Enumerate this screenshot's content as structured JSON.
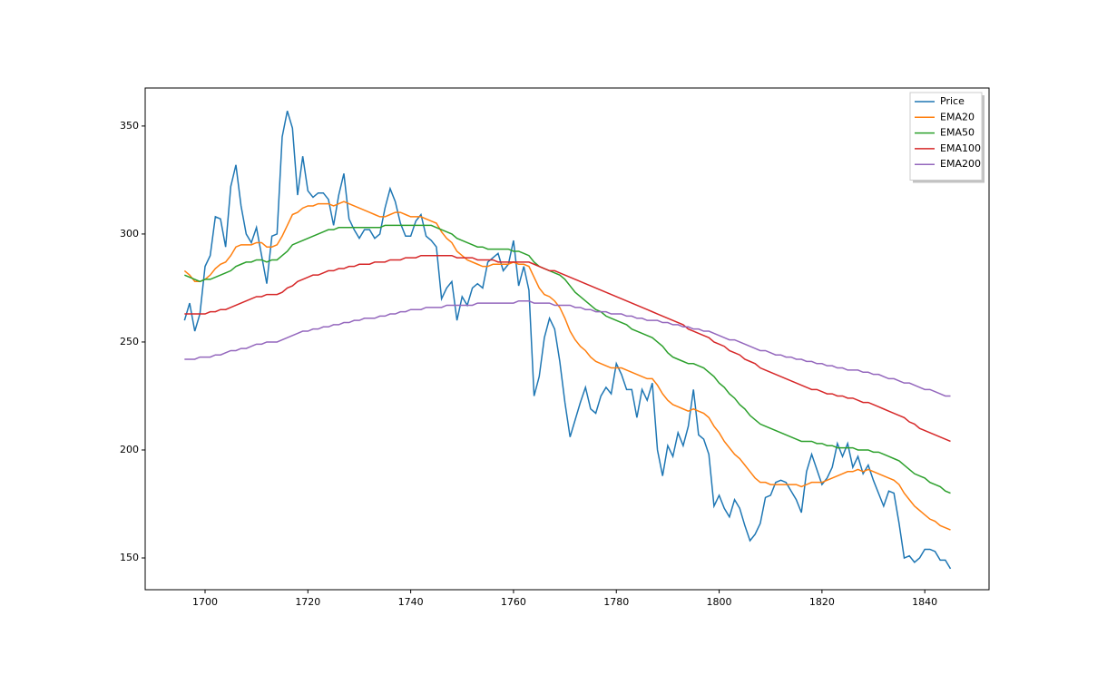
{
  "chart_data": {
    "type": "line",
    "x": [
      1696,
      1697,
      1698,
      1699,
      1700,
      1701,
      1702,
      1703,
      1704,
      1705,
      1706,
      1707,
      1708,
      1709,
      1710,
      1711,
      1712,
      1713,
      1714,
      1715,
      1716,
      1717,
      1718,
      1719,
      1720,
      1721,
      1722,
      1723,
      1724,
      1725,
      1726,
      1727,
      1728,
      1729,
      1730,
      1731,
      1732,
      1733,
      1734,
      1735,
      1736,
      1737,
      1738,
      1739,
      1740,
      1741,
      1742,
      1743,
      1744,
      1745,
      1746,
      1747,
      1748,
      1749,
      1750,
      1751,
      1752,
      1753,
      1754,
      1755,
      1756,
      1757,
      1758,
      1759,
      1760,
      1761,
      1762,
      1763,
      1764,
      1765,
      1766,
      1767,
      1768,
      1769,
      1770,
      1771,
      1772,
      1773,
      1774,
      1775,
      1776,
      1777,
      1778,
      1779,
      1780,
      1781,
      1782,
      1783,
      1784,
      1785,
      1786,
      1787,
      1788,
      1789,
      1790,
      1791,
      1792,
      1793,
      1794,
      1795,
      1796,
      1797,
      1798,
      1799,
      1800,
      1801,
      1802,
      1803,
      1804,
      1805,
      1806,
      1807,
      1808,
      1809,
      1810,
      1811,
      1812,
      1813,
      1814,
      1815,
      1816,
      1817,
      1818,
      1819,
      1820,
      1821,
      1822,
      1823,
      1824,
      1825,
      1826,
      1827,
      1828,
      1829,
      1830,
      1831,
      1832,
      1833,
      1834,
      1835,
      1836,
      1837,
      1838,
      1839,
      1840,
      1841,
      1842,
      1843,
      1844,
      1845
    ],
    "series": [
      {
        "name": "Price",
        "color": "#1f77b4",
        "values": [
          260,
          268,
          255,
          263,
          285,
          290,
          308,
          307,
          294,
          322,
          332,
          313,
          300,
          296,
          303,
          290,
          277,
          299,
          300,
          345,
          357,
          349,
          318,
          336,
          320,
          317,
          319,
          319,
          316,
          304,
          318,
          328,
          307,
          302,
          298,
          302,
          302,
          298,
          300,
          312,
          321,
          315,
          305,
          299,
          299,
          306,
          309,
          299,
          297,
          294,
          270,
          275,
          278,
          260,
          271,
          267,
          275,
          277,
          275,
          287,
          289,
          291,
          283,
          286,
          297,
          276,
          285,
          274,
          225,
          234,
          252,
          261,
          256,
          241,
          222,
          206,
          214,
          222,
          229,
          219,
          217,
          225,
          229,
          226,
          240,
          235,
          228,
          228,
          215,
          228,
          223,
          231,
          200,
          188,
          202,
          197,
          208,
          202,
          211,
          228,
          207,
          205,
          198,
          174,
          179,
          173,
          169,
          177,
          173,
          165,
          158,
          161,
          166,
          178,
          179,
          185,
          186,
          185,
          181,
          177,
          171,
          190,
          198,
          191,
          184,
          187,
          192,
          203,
          197,
          203,
          192,
          197,
          189,
          193,
          186,
          180,
          174,
          181,
          180,
          166,
          150,
          151,
          148,
          150,
          154,
          154,
          153,
          149,
          149,
          145
        ]
      },
      {
        "name": "EMA20",
        "color": "#ff7f0e",
        "values": [
          283,
          281,
          278,
          278,
          279,
          281,
          284,
          286,
          287,
          290,
          294,
          295,
          295,
          295,
          296,
          296,
          294,
          294,
          295,
          299,
          304,
          309,
          310,
          312,
          313,
          313,
          314,
          314,
          314,
          313,
          314,
          315,
          314,
          313,
          312,
          311,
          310,
          309,
          308,
          308,
          309,
          310,
          310,
          309,
          308,
          308,
          308,
          307,
          306,
          305,
          301,
          298,
          296,
          292,
          290,
          288,
          287,
          286,
          285,
          285,
          286,
          286,
          286,
          286,
          287,
          286,
          286,
          285,
          280,
          275,
          272,
          271,
          269,
          266,
          261,
          255,
          251,
          248,
          246,
          243,
          241,
          240,
          239,
          238,
          238,
          238,
          237,
          236,
          235,
          234,
          233,
          233,
          230,
          226,
          223,
          221,
          220,
          219,
          218,
          219,
          218,
          217,
          215,
          211,
          208,
          204,
          201,
          198,
          196,
          193,
          190,
          187,
          185,
          185,
          184,
          184,
          184,
          184,
          184,
          184,
          183,
          184,
          185,
          185,
          185,
          186,
          187,
          188,
          189,
          190,
          190,
          191,
          190,
          191,
          190,
          189,
          188,
          187,
          186,
          184,
          180,
          177,
          174,
          172,
          170,
          168,
          167,
          165,
          164,
          163
        ]
      },
      {
        "name": "EMA50",
        "color": "#2ca02c",
        "values": [
          281,
          280,
          279,
          278,
          279,
          279,
          280,
          281,
          282,
          283,
          285,
          286,
          287,
          287,
          288,
          288,
          287,
          288,
          288,
          290,
          292,
          295,
          296,
          297,
          298,
          299,
          300,
          301,
          302,
          302,
          303,
          303,
          303,
          303,
          303,
          303,
          303,
          303,
          303,
          304,
          304,
          304,
          304,
          304,
          304,
          304,
          304,
          304,
          304,
          303,
          302,
          301,
          300,
          298,
          297,
          296,
          295,
          294,
          294,
          293,
          293,
          293,
          293,
          293,
          292,
          292,
          291,
          290,
          287,
          285,
          284,
          283,
          282,
          281,
          279,
          276,
          273,
          271,
          269,
          267,
          265,
          264,
          262,
          261,
          260,
          259,
          258,
          256,
          255,
          254,
          253,
          252,
          250,
          248,
          245,
          243,
          242,
          241,
          240,
          240,
          239,
          238,
          236,
          234,
          231,
          229,
          226,
          224,
          221,
          219,
          216,
          214,
          212,
          211,
          210,
          209,
          208,
          207,
          206,
          205,
          204,
          204,
          204,
          203,
          203,
          202,
          202,
          201,
          201,
          201,
          201,
          200,
          200,
          200,
          199,
          199,
          198,
          197,
          196,
          195,
          193,
          191,
          189,
          188,
          187,
          185,
          184,
          183,
          181,
          180
        ]
      },
      {
        "name": "EMA100",
        "color": "#d62728",
        "values": [
          263,
          263,
          263,
          263,
          263,
          264,
          264,
          265,
          265,
          266,
          267,
          268,
          269,
          270,
          271,
          271,
          272,
          272,
          272,
          273,
          275,
          276,
          278,
          279,
          280,
          281,
          281,
          282,
          283,
          283,
          284,
          284,
          285,
          285,
          286,
          286,
          286,
          287,
          287,
          287,
          288,
          288,
          288,
          289,
          289,
          289,
          290,
          290,
          290,
          290,
          290,
          290,
          290,
          289,
          289,
          289,
          289,
          288,
          288,
          288,
          288,
          287,
          287,
          287,
          287,
          287,
          287,
          287,
          286,
          285,
          284,
          283,
          283,
          282,
          281,
          280,
          279,
          278,
          277,
          276,
          275,
          274,
          273,
          272,
          271,
          270,
          269,
          268,
          267,
          266,
          265,
          264,
          263,
          262,
          261,
          260,
          259,
          258,
          256,
          255,
          254,
          253,
          252,
          250,
          249,
          248,
          246,
          245,
          244,
          242,
          241,
          240,
          238,
          237,
          236,
          235,
          234,
          233,
          232,
          231,
          230,
          229,
          228,
          228,
          227,
          226,
          226,
          225,
          225,
          224,
          224,
          223,
          222,
          222,
          221,
          220,
          219,
          218,
          217,
          216,
          215,
          213,
          212,
          210,
          209,
          208,
          207,
          206,
          205,
          204
        ]
      },
      {
        "name": "EMA200",
        "color": "#9467bd",
        "values": [
          242,
          242,
          242,
          243,
          243,
          243,
          244,
          244,
          245,
          246,
          246,
          247,
          247,
          248,
          249,
          249,
          250,
          250,
          250,
          251,
          252,
          253,
          254,
          255,
          255,
          256,
          256,
          257,
          257,
          258,
          258,
          259,
          259,
          260,
          260,
          261,
          261,
          261,
          262,
          262,
          263,
          263,
          264,
          264,
          265,
          265,
          265,
          266,
          266,
          266,
          266,
          267,
          267,
          267,
          267,
          267,
          267,
          268,
          268,
          268,
          268,
          268,
          268,
          268,
          268,
          269,
          269,
          269,
          268,
          268,
          268,
          268,
          267,
          267,
          267,
          267,
          266,
          266,
          265,
          265,
          264,
          264,
          264,
          263,
          263,
          263,
          262,
          262,
          261,
          261,
          260,
          260,
          260,
          259,
          259,
          258,
          258,
          257,
          257,
          256,
          256,
          255,
          255,
          254,
          253,
          252,
          251,
          251,
          250,
          249,
          248,
          247,
          246,
          246,
          245,
          244,
          244,
          243,
          243,
          242,
          242,
          241,
          241,
          240,
          240,
          239,
          239,
          238,
          238,
          237,
          237,
          237,
          236,
          236,
          235,
          235,
          234,
          233,
          233,
          232,
          231,
          231,
          230,
          229,
          228,
          228,
          227,
          226,
          225,
          225
        ]
      }
    ],
    "xlim": [
      1688.35,
      1852.5
    ],
    "ylim": [
      135.3,
      367.6
    ],
    "xticks": [
      1700,
      1720,
      1740,
      1760,
      1780,
      1800,
      1820,
      1840
    ],
    "yticks": [
      150,
      200,
      250,
      300,
      350
    ],
    "grid": false,
    "legend": "upper right"
  }
}
